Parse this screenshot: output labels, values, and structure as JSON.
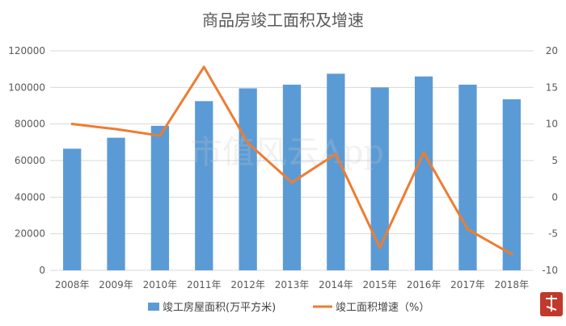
{
  "chart_data": {
    "type": "bar",
    "title": "商品房竣工面积及增速",
    "categories": [
      "2008年",
      "2009年",
      "2010年",
      "2011年",
      "2012年",
      "2013年",
      "2014年",
      "2015年",
      "2016年",
      "2017年",
      "2018年"
    ],
    "series": [
      {
        "name": "竣工房屋面积(万平方米)",
        "type": "bar",
        "axis": "left",
        "color": "#5b9bd5",
        "values": [
          66500,
          72500,
          79000,
          92500,
          99500,
          101500,
          107500,
          100000,
          106000,
          101500,
          93500
        ]
      },
      {
        "name": "竣工面积增速（%）",
        "type": "line",
        "axis": "right",
        "color": "#ed7d31",
        "values": [
          10,
          9.3,
          8.4,
          17.8,
          7.4,
          2.0,
          5.9,
          -6.9,
          6.1,
          -4.4,
          -7.8
        ]
      }
    ],
    "y_left": {
      "ylim": [
        0,
        120000
      ],
      "ticks": [
        "0",
        "20000",
        "40000",
        "60000",
        "80000",
        "100000",
        "120000"
      ]
    },
    "y_right": {
      "ylim": [
        -10,
        20
      ],
      "ticks": [
        "-10",
        "-5",
        "0",
        "5",
        "10",
        "15",
        "20"
      ]
    },
    "grid": true,
    "legend_position": "bottom"
  },
  "watermark": "市值风云App"
}
